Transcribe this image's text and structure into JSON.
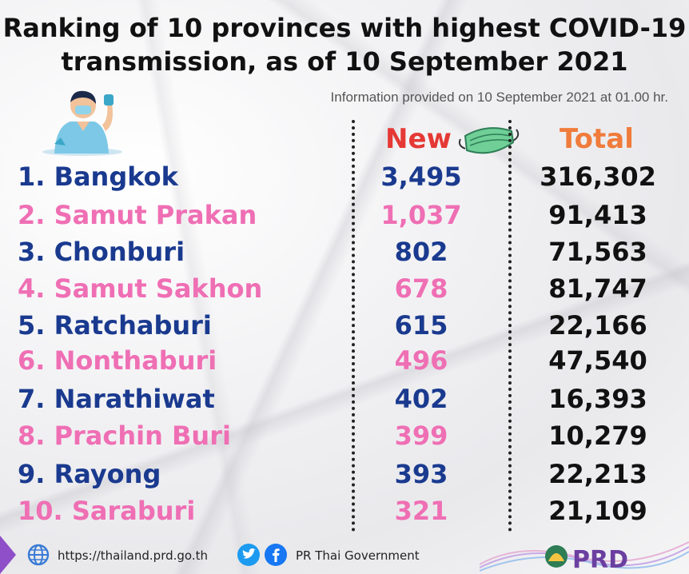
{
  "title_line1": "Ranking of 10 provinces with highest COVID-19",
  "title_line2": "transmission, as of 10 September 2021",
  "subtitle": "Information provided on 10 September 2021 at 01.00 hr.",
  "headers": {
    "new": "New",
    "total": "Total"
  },
  "colors": {
    "blue": "#1a3a8f",
    "pink": "#ef6fb4",
    "new_header": "#e53935",
    "total_header": "#f07b3b"
  },
  "rows": [
    {
      "rank": "1.",
      "province": "Bangkok",
      "new": "3,495",
      "total": "316,302"
    },
    {
      "rank": "2.",
      "province": "Samut Prakan",
      "new": "1,037",
      "total": "91,413"
    },
    {
      "rank": "3.",
      "province": "Chonburi",
      "new": "802",
      "total": "71,563"
    },
    {
      "rank": "4.",
      "province": "Samut Sakhon",
      "new": "678",
      "total": "81,747"
    },
    {
      "rank": "5.",
      "province": "Ratchaburi",
      "new": "615",
      "total": "22,166"
    },
    {
      "rank": "6.",
      "province": "Nonthaburi",
      "new": "496",
      "total": "47,540"
    },
    {
      "rank": "7.",
      "province": "Narathiwat",
      "new": "402",
      "total": "16,393"
    },
    {
      "rank": "8.",
      "province": "Prachin Buri",
      "new": "399",
      "total": "10,279"
    },
    {
      "rank": "9.",
      "province": "Rayong",
      "new": "393",
      "total": "22,213"
    },
    {
      "rank": "10.",
      "province": "Saraburi",
      "new": "321",
      "total": "21,109"
    }
  ],
  "footer": {
    "url": "https://thailand.prd.go.th",
    "social": "PR Thai Government",
    "logo_text": "PRD",
    "icons": [
      "globe-icon",
      "twitter-icon",
      "facebook-icon"
    ]
  }
}
